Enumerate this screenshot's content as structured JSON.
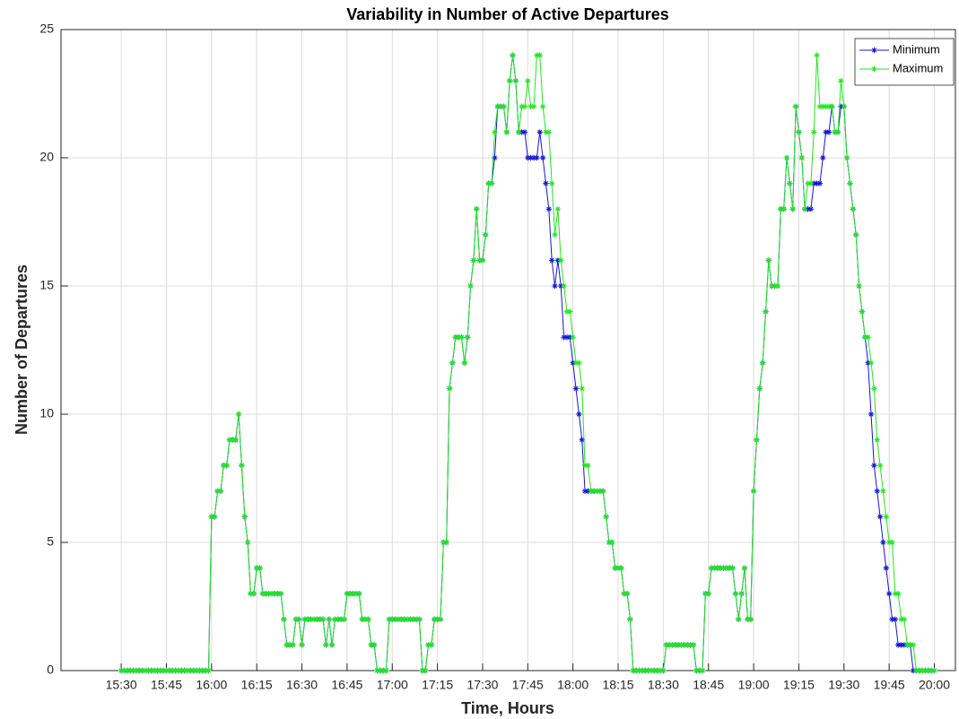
{
  "chart_data": {
    "type": "line",
    "title": "Variability in Number of Active Departures",
    "x_label": "Time, Hours",
    "y_label": "Number of Departures",
    "x": [
      "15:30",
      "15:31",
      "15:32",
      "15:33",
      "15:34",
      "15:35",
      "15:36",
      "15:37",
      "15:38",
      "15:39",
      "15:40",
      "15:41",
      "15:42",
      "15:43",
      "15:44",
      "15:45",
      "15:46",
      "15:47",
      "15:48",
      "15:49",
      "15:50",
      "15:51",
      "15:52",
      "15:53",
      "15:54",
      "15:55",
      "15:56",
      "15:57",
      "15:58",
      "15:59",
      "16:00",
      "16:01",
      "16:02",
      "16:03",
      "16:04",
      "16:05",
      "16:06",
      "16:07",
      "16:08",
      "16:09",
      "16:10",
      "16:11",
      "16:12",
      "16:13",
      "16:14",
      "16:15",
      "16:16",
      "16:17",
      "16:18",
      "16:19",
      "16:20",
      "16:21",
      "16:22",
      "16:23",
      "16:24",
      "16:25",
      "16:26",
      "16:27",
      "16:28",
      "16:29",
      "16:30",
      "16:31",
      "16:32",
      "16:33",
      "16:34",
      "16:35",
      "16:36",
      "16:37",
      "16:38",
      "16:39",
      "16:40",
      "16:41",
      "16:42",
      "16:43",
      "16:44",
      "16:45",
      "16:46",
      "16:47",
      "16:48",
      "16:49",
      "16:50",
      "16:51",
      "16:52",
      "16:53",
      "16:54",
      "16:55",
      "16:56",
      "16:57",
      "16:58",
      "16:59",
      "17:00",
      "17:01",
      "17:02",
      "17:03",
      "17:04",
      "17:05",
      "17:06",
      "17:07",
      "17:08",
      "17:09",
      "17:10",
      "17:11",
      "17:12",
      "17:13",
      "17:14",
      "17:15",
      "17:16",
      "17:17",
      "17:18",
      "17:19",
      "17:20",
      "17:21",
      "17:22",
      "17:23",
      "17:24",
      "17:25",
      "17:26",
      "17:27",
      "17:28",
      "17:29",
      "17:30",
      "17:31",
      "17:32",
      "17:33",
      "17:34",
      "17:35",
      "17:36",
      "17:37",
      "17:38",
      "17:39",
      "17:40",
      "17:41",
      "17:42",
      "17:43",
      "17:44",
      "17:45",
      "17:46",
      "17:47",
      "17:48",
      "17:49",
      "17:50",
      "17:51",
      "17:52",
      "17:53",
      "17:54",
      "17:55",
      "17:56",
      "17:57",
      "17:58",
      "17:59",
      "18:00",
      "18:01",
      "18:02",
      "18:03",
      "18:04",
      "18:05",
      "18:06",
      "18:07",
      "18:08",
      "18:09",
      "18:10",
      "18:11",
      "18:12",
      "18:13",
      "18:14",
      "18:15",
      "18:16",
      "18:17",
      "18:18",
      "18:19",
      "18:20",
      "18:21",
      "18:22",
      "18:23",
      "18:24",
      "18:25",
      "18:26",
      "18:27",
      "18:28",
      "18:29",
      "18:30",
      "18:31",
      "18:32",
      "18:33",
      "18:34",
      "18:35",
      "18:36",
      "18:37",
      "18:38",
      "18:39",
      "18:40",
      "18:41",
      "18:42",
      "18:43",
      "18:44",
      "18:45",
      "18:46",
      "18:47",
      "18:48",
      "18:49",
      "18:50",
      "18:51",
      "18:52",
      "18:53",
      "18:54",
      "18:55",
      "18:56",
      "18:57",
      "18:58",
      "18:59",
      "19:00",
      "19:01",
      "19:02",
      "19:03",
      "19:04",
      "19:05",
      "19:06",
      "19:07",
      "19:08",
      "19:09",
      "19:10",
      "19:11",
      "19:12",
      "19:13",
      "19:14",
      "19:15",
      "19:16",
      "19:17",
      "19:18",
      "19:19",
      "19:20",
      "19:21",
      "19:22",
      "19:23",
      "19:24",
      "19:25",
      "19:26",
      "19:27",
      "19:28",
      "19:29",
      "19:30",
      "19:31",
      "19:32",
      "19:33",
      "19:34",
      "19:35",
      "19:36",
      "19:37",
      "19:38",
      "19:39",
      "19:40",
      "19:41",
      "19:42",
      "19:43",
      "19:44",
      "19:45",
      "19:46",
      "19:47",
      "19:48",
      "19:49",
      "19:50",
      "19:51",
      "19:52",
      "19:53",
      "19:54",
      "19:55",
      "19:56",
      "19:57",
      "19:58",
      "19:59",
      "20:00"
    ],
    "series": [
      {
        "name": "Minimum",
        "color": "#1414d2",
        "values": [
          0,
          0,
          0,
          0,
          0,
          0,
          0,
          0,
          0,
          0,
          0,
          0,
          0,
          0,
          0,
          0,
          0,
          0,
          0,
          0,
          0,
          0,
          0,
          0,
          0,
          0,
          0,
          0,
          0,
          0,
          6,
          6,
          7,
          7,
          8,
          8,
          9,
          9,
          9,
          10,
          8,
          6,
          5,
          3,
          3,
          4,
          4,
          3,
          3,
          3,
          3,
          3,
          3,
          3,
          2,
          1,
          1,
          1,
          2,
          2,
          1,
          2,
          2,
          2,
          2,
          2,
          2,
          2,
          1,
          2,
          1,
          2,
          2,
          2,
          2,
          3,
          3,
          3,
          3,
          3,
          2,
          2,
          2,
          1,
          1,
          0,
          0,
          0,
          0,
          2,
          2,
          2,
          2,
          2,
          2,
          2,
          2,
          2,
          2,
          2,
          0,
          0,
          1,
          1,
          2,
          2,
          2,
          5,
          5,
          11,
          12,
          13,
          13,
          13,
          12,
          13,
          15,
          16,
          18,
          16,
          16,
          17,
          19,
          19,
          20,
          22,
          22,
          22,
          21,
          23,
          24,
          23,
          21,
          21,
          21,
          20,
          20,
          20,
          20,
          21,
          20,
          19,
          18,
          16,
          15,
          16,
          15,
          13,
          13,
          13,
          12,
          11,
          10,
          9,
          7,
          7,
          7,
          7,
          7,
          7,
          7,
          6,
          5,
          5,
          4,
          4,
          4,
          3,
          3,
          2,
          0,
          0,
          0,
          0,
          0,
          0,
          0,
          0,
          0,
          0,
          0,
          1,
          1,
          1,
          1,
          1,
          1,
          1,
          1,
          1,
          1,
          0,
          0,
          0,
          3,
          3,
          4,
          4,
          4,
          4,
          4,
          4,
          4,
          4,
          3,
          2,
          3,
          4,
          2,
          2,
          7,
          9,
          11,
          12,
          14,
          16,
          15,
          15,
          15,
          18,
          18,
          20,
          19,
          18,
          22,
          21,
          20,
          18,
          18,
          18,
          19,
          19,
          19,
          20,
          21,
          21,
          22,
          21,
          21,
          22,
          22,
          20,
          19,
          18,
          17,
          15,
          14,
          13,
          12,
          10,
          8,
          7,
          6,
          5,
          4,
          3,
          2,
          2,
          1,
          1,
          1,
          1,
          1,
          0,
          0,
          0,
          0,
          0,
          0,
          0,
          0
        ]
      },
      {
        "name": "Maximum",
        "color": "#22e622",
        "values": [
          0,
          0,
          0,
          0,
          0,
          0,
          0,
          0,
          0,
          0,
          0,
          0,
          0,
          0,
          0,
          0,
          0,
          0,
          0,
          0,
          0,
          0,
          0,
          0,
          0,
          0,
          0,
          0,
          0,
          0,
          6,
          6,
          7,
          7,
          8,
          8,
          9,
          9,
          9,
          10,
          8,
          6,
          5,
          3,
          3,
          4,
          4,
          3,
          3,
          3,
          3,
          3,
          3,
          3,
          2,
          1,
          1,
          1,
          2,
          2,
          1,
          2,
          2,
          2,
          2,
          2,
          2,
          2,
          1,
          2,
          1,
          2,
          2,
          2,
          2,
          3,
          3,
          3,
          3,
          3,
          2,
          2,
          2,
          1,
          1,
          0,
          0,
          0,
          0,
          2,
          2,
          2,
          2,
          2,
          2,
          2,
          2,
          2,
          2,
          2,
          0,
          0,
          1,
          1,
          2,
          2,
          2,
          5,
          5,
          11,
          12,
          13,
          13,
          13,
          12,
          13,
          15,
          16,
          18,
          16,
          16,
          17,
          19,
          19,
          21,
          22,
          22,
          22,
          21,
          23,
          24,
          23,
          21,
          22,
          22,
          23,
          22,
          22,
          24,
          24,
          22,
          21,
          21,
          19,
          17,
          18,
          16,
          15,
          14,
          14,
          13,
          12,
          12,
          11,
          8,
          8,
          7,
          7,
          7,
          7,
          7,
          6,
          5,
          5,
          4,
          4,
          4,
          3,
          3,
          2,
          0,
          0,
          0,
          0,
          0,
          0,
          0,
          0,
          0,
          0,
          0,
          1,
          1,
          1,
          1,
          1,
          1,
          1,
          1,
          1,
          1,
          0,
          0,
          0,
          3,
          3,
          4,
          4,
          4,
          4,
          4,
          4,
          4,
          4,
          3,
          2,
          3,
          4,
          2,
          2,
          7,
          9,
          11,
          12,
          14,
          16,
          15,
          15,
          15,
          18,
          18,
          20,
          19,
          18,
          22,
          21,
          20,
          18,
          19,
          19,
          21,
          24,
          22,
          22,
          22,
          22,
          22,
          21,
          21,
          23,
          22,
          20,
          19,
          18,
          17,
          15,
          14,
          13,
          13,
          12,
          11,
          9,
          8,
          7,
          6,
          5,
          5,
          3,
          3,
          2,
          2,
          1,
          1,
          1,
          0,
          0,
          0,
          0,
          0,
          0,
          0
        ]
      }
    ],
    "xlim": [
      "15:10",
      "20:07"
    ],
    "xticks": [
      "15:30",
      "15:45",
      "16:00",
      "16:15",
      "16:30",
      "16:45",
      "17:00",
      "17:15",
      "17:30",
      "17:45",
      "18:00",
      "18:15",
      "18:30",
      "18:45",
      "19:00",
      "19:15",
      "19:30",
      "19:45",
      "20:00"
    ],
    "ylim": [
      0,
      25
    ],
    "yticks": [
      0,
      5,
      10,
      15,
      20,
      25
    ],
    "grid": true,
    "legend": "upper right"
  }
}
